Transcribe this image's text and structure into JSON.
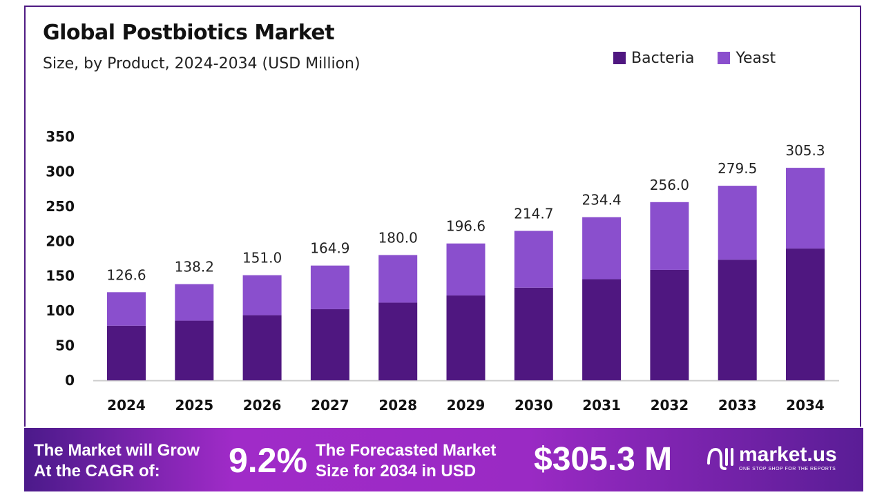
{
  "chart_data": {
    "type": "bar",
    "stacked": true,
    "title": "Global Postbiotics Market",
    "subtitle": "Size, by Product, 2024-2034 (USD Million)",
    "categories": [
      "2024",
      "2025",
      "2026",
      "2027",
      "2028",
      "2029",
      "2030",
      "2031",
      "2032",
      "2033",
      "2034"
    ],
    "series": [
      {
        "name": "Bacteria",
        "color": "#4f1780",
        "values": [
          78.5,
          85.7,
          93.6,
          102.2,
          111.6,
          121.9,
          133.1,
          145.3,
          158.7,
          173.3,
          189.3
        ]
      },
      {
        "name": "Yeast",
        "color": "#8a4fcd",
        "values": [
          48.1,
          52.5,
          57.4,
          62.7,
          68.4,
          74.7,
          81.6,
          89.1,
          97.3,
          106.2,
          116.0
        ]
      }
    ],
    "totals": [
      "126.6",
      "138.2",
      "151.0",
      "164.9",
      "180.0",
      "196.6",
      "214.7",
      "234.4",
      "256.0",
      "279.5",
      "305.3"
    ],
    "yticks": [
      "0",
      "50",
      "100",
      "150",
      "200",
      "250",
      "300",
      "350"
    ],
    "ylim": [
      0,
      350
    ],
    "grid": false,
    "legend_position": "top-right"
  },
  "footer": {
    "cagr_label_1": "The Market will Grow",
    "cagr_label_2": "At the CAGR of:",
    "cagr_value": "9.2%",
    "forecast_label_1": "The Forecasted Market",
    "forecast_label_2": "Size for 2034 in USD",
    "forecast_value": "$305.3 M",
    "logo_text": "market.us",
    "logo_tagline": "ONE STOP SHOP FOR THE REPORTS"
  }
}
